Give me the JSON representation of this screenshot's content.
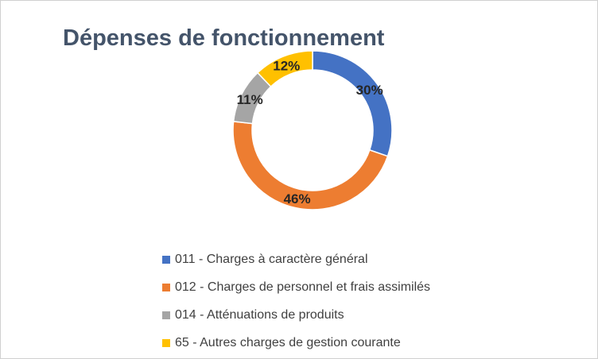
{
  "chart_data": {
    "type": "pie",
    "variant": "donut",
    "title": "Dépenses de fonctionnement",
    "categories": [
      "011 - Charges à caractère général",
      "012 - Charges de personnel et frais assimilés",
      "014 - Atténuations de produits",
      "65 - Autres charges de gestion courante"
    ],
    "values": [
      30,
      46,
      11,
      12
    ],
    "data_labels": [
      "30%",
      "46%",
      "11%",
      "12%"
    ],
    "colors": [
      "#4472c4",
      "#ed7d31",
      "#a5a5a5",
      "#ffc000"
    ],
    "legend_position": "bottom"
  }
}
